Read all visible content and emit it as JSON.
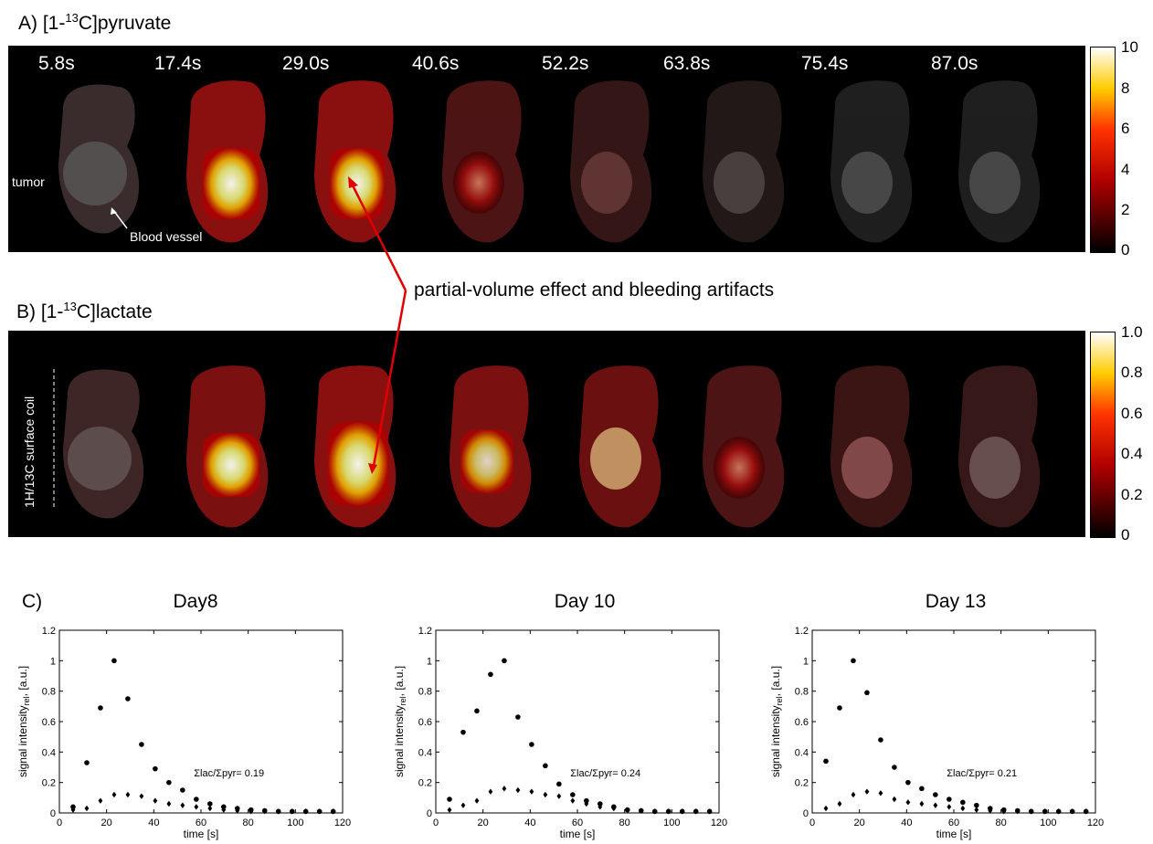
{
  "panelA": {
    "label_prefix": "A) [1-",
    "label_sup": "13",
    "label_suffix": "C]pyruvate",
    "times": [
      "5.8s",
      "17.4s",
      "29.0s",
      "40.6s",
      "52.2s",
      "63.8s",
      "75.4s",
      "87.0s"
    ],
    "tumor_label": "tumor",
    "vessel_label": "Blood vessel",
    "colorbar_ticks": [
      "10",
      "8",
      "6",
      "4",
      "2",
      "0"
    ]
  },
  "panelB": {
    "label_prefix": "B) [1-",
    "label_sup": "13",
    "label_suffix": "C]lactate",
    "coil_label": "1H/13C surface coil",
    "colorbar_ticks": [
      "1.0",
      "0.8",
      "0.6",
      "0.4",
      "0.2",
      "0"
    ]
  },
  "annotation": "partial-volume effect and bleeding artifacts",
  "panelC": {
    "label": "C)"
  },
  "chart_data": [
    {
      "type": "scatter",
      "title": "Day8",
      "xlabel": "time [s]",
      "ylabel_main": "signal intensity",
      "ylabel_sub": "rel",
      "ylabel_tail": ", [a.u.]",
      "xlim": [
        0,
        120
      ],
      "ylim": [
        0,
        1.2
      ],
      "xticks": [
        0,
        20,
        40,
        60,
        80,
        100,
        120
      ],
      "yticks": [
        0,
        0.2,
        0.4,
        0.6,
        0.8,
        1,
        1.2
      ],
      "annotation": "Σlac/Σpyr= 0.19",
      "series": [
        {
          "name": "pyruvate",
          "marker": "circle",
          "x": [
            5.8,
            11.6,
            17.4,
            23.2,
            29.0,
            34.8,
            40.6,
            46.4,
            52.2,
            58.0,
            63.8,
            69.6,
            75.4,
            81.2,
            87.0,
            92.8,
            98.6,
            104.4,
            110.2,
            116.0
          ],
          "y": [
            0.04,
            0.33,
            0.69,
            1.0,
            0.75,
            0.45,
            0.29,
            0.2,
            0.15,
            0.09,
            0.06,
            0.04,
            0.03,
            0.02,
            0.015,
            0.01,
            0.01,
            0.01,
            0.01,
            0.01
          ]
        },
        {
          "name": "lactate",
          "marker": "diamond",
          "x": [
            5.8,
            11.6,
            17.4,
            23.2,
            29.0,
            34.8,
            40.6,
            46.4,
            52.2,
            58.0,
            63.8,
            69.6,
            75.4,
            81.2,
            87.0,
            92.8,
            98.6,
            104.4,
            110.2,
            116.0
          ],
          "y": [
            0.02,
            0.03,
            0.08,
            0.12,
            0.12,
            0.11,
            0.08,
            0.06,
            0.05,
            0.04,
            0.03,
            0.02,
            0.015,
            0.01,
            0.01,
            0.01,
            0.01,
            0.01,
            0.01,
            0.01
          ]
        }
      ]
    },
    {
      "type": "scatter",
      "title": "Day 10",
      "xlabel": "time [s]",
      "ylabel_main": "signal intensity",
      "ylabel_sub": "rel",
      "ylabel_tail": ", [a.u.]",
      "xlim": [
        0,
        120
      ],
      "ylim": [
        0,
        1.2
      ],
      "xticks": [
        0,
        20,
        40,
        60,
        80,
        100,
        120
      ],
      "yticks": [
        0,
        0.2,
        0.4,
        0.6,
        0.8,
        1,
        1.2
      ],
      "annotation": "Σlac/Σpyr= 0.24",
      "series": [
        {
          "name": "pyruvate",
          "marker": "circle",
          "x": [
            5.8,
            11.6,
            17.4,
            23.2,
            29.0,
            34.8,
            40.6,
            46.4,
            52.2,
            58.0,
            63.8,
            69.6,
            75.4,
            81.2,
            87.0,
            92.8,
            98.6,
            104.4,
            110.2,
            116.0
          ],
          "y": [
            0.09,
            0.53,
            0.67,
            0.91,
            1.0,
            0.63,
            0.45,
            0.31,
            0.19,
            0.12,
            0.08,
            0.06,
            0.04,
            0.02,
            0.015,
            0.01,
            0.01,
            0.01,
            0.01,
            0.01
          ]
        },
        {
          "name": "lactate",
          "marker": "diamond",
          "x": [
            5.8,
            11.6,
            17.4,
            23.2,
            29.0,
            34.8,
            40.6,
            46.4,
            52.2,
            58.0,
            63.8,
            69.6,
            75.4,
            81.2,
            87.0,
            92.8,
            98.6,
            104.4,
            110.2,
            116.0
          ],
          "y": [
            0.02,
            0.05,
            0.08,
            0.14,
            0.16,
            0.15,
            0.14,
            0.12,
            0.11,
            0.08,
            0.06,
            0.04,
            0.03,
            0.02,
            0.015,
            0.01,
            0.01,
            0.01,
            0.01,
            0.01
          ]
        }
      ]
    },
    {
      "type": "scatter",
      "title": "Day 13",
      "xlabel": "time [s]",
      "ylabel_main": "signal intensity",
      "ylabel_sub": "rel",
      "ylabel_tail": ", [a.u.]",
      "xlim": [
        0,
        120
      ],
      "ylim": [
        0,
        1.2
      ],
      "xticks": [
        0,
        20,
        40,
        60,
        80,
        100,
        120
      ],
      "yticks": [
        0,
        0.2,
        0.4,
        0.6,
        0.8,
        1,
        1.2
      ],
      "annotation": "Σlac/Σpyr= 0.21",
      "series": [
        {
          "name": "pyruvate",
          "marker": "circle",
          "x": [
            5.8,
            11.6,
            17.4,
            23.2,
            29.0,
            34.8,
            40.6,
            46.4,
            52.2,
            58.0,
            63.8,
            69.6,
            75.4,
            81.2,
            87.0,
            92.8,
            98.6,
            104.4,
            110.2,
            116.0
          ],
          "y": [
            0.34,
            0.69,
            1.0,
            0.79,
            0.48,
            0.3,
            0.2,
            0.16,
            0.12,
            0.09,
            0.07,
            0.05,
            0.03,
            0.02,
            0.015,
            0.01,
            0.01,
            0.01,
            0.01,
            0.01
          ]
        },
        {
          "name": "lactate",
          "marker": "diamond",
          "x": [
            5.8,
            11.6,
            17.4,
            23.2,
            29.0,
            34.8,
            40.6,
            46.4,
            52.2,
            58.0,
            63.8,
            69.6,
            75.4,
            81.2,
            87.0,
            92.8,
            98.6,
            104.4,
            110.2,
            116.0
          ],
          "y": [
            0.03,
            0.06,
            0.12,
            0.14,
            0.13,
            0.09,
            0.07,
            0.06,
            0.05,
            0.04,
            0.03,
            0.02,
            0.015,
            0.01,
            0.01,
            0.01,
            0.01,
            0.01,
            0.01,
            0.01
          ]
        }
      ]
    }
  ]
}
